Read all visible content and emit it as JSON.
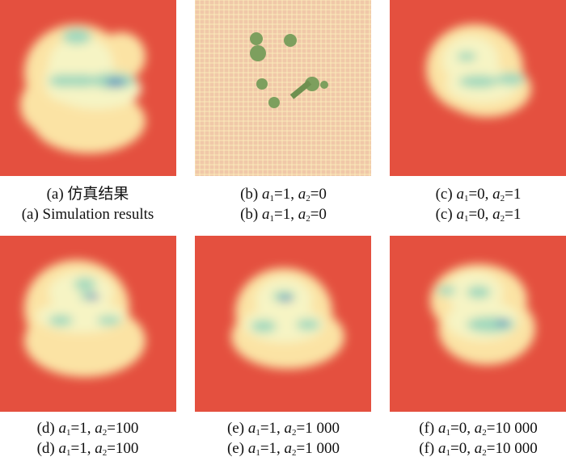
{
  "panels": [
    {
      "id": "a",
      "caption_cn": "(a) 仿真结果",
      "caption_en": "(a) Simulation results"
    },
    {
      "id": "b",
      "label": "(b)",
      "a1": "1",
      "a2": "0"
    },
    {
      "id": "c",
      "label": "(c)",
      "a1": "0",
      "a2": "1"
    },
    {
      "id": "d",
      "label": "(d)",
      "a1": "1",
      "a2": "100"
    },
    {
      "id": "e",
      "label": "(e)",
      "a1": "1",
      "a2": "1 000"
    },
    {
      "id": "f",
      "label": "(f)",
      "a1": "0",
      "a2": "10 000"
    }
  ],
  "colors": {
    "background": "#e4503f",
    "low": "#fbe3a4",
    "mid": "#f6f4c4",
    "high": "#9fd8bd",
    "peak": "#3f6fbf"
  }
}
